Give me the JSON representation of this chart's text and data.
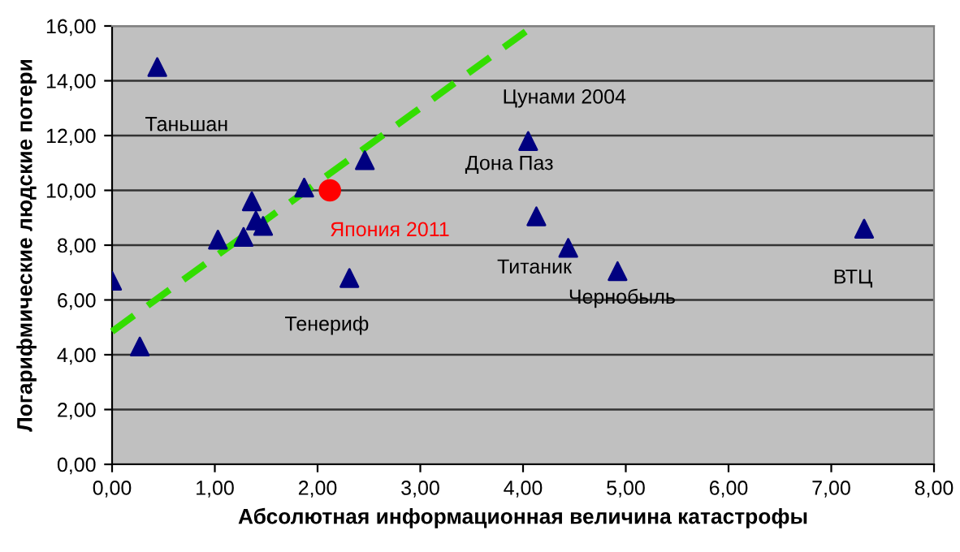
{
  "chart_data": {
    "type": "scatter",
    "xlabel": "Абсолютная информационная величина катастрофы",
    "ylabel": "Логарифмические людские потери",
    "xlim": [
      0,
      8
    ],
    "ylim": [
      0,
      16
    ],
    "xticks": [
      {
        "value": 0,
        "label": "0,00"
      },
      {
        "value": 1,
        "label": "1,00"
      },
      {
        "value": 2,
        "label": "2,00"
      },
      {
        "value": 3,
        "label": "3,00"
      },
      {
        "value": 4,
        "label": "4,00"
      },
      {
        "value": 5,
        "label": "5,00"
      },
      {
        "value": 6,
        "label": "6,00"
      },
      {
        "value": 7,
        "label": "7,00"
      },
      {
        "value": 8,
        "label": "8,00"
      }
    ],
    "yticks": [
      {
        "value": 0,
        "label": "0,00"
      },
      {
        "value": 2,
        "label": "2,00"
      },
      {
        "value": 4,
        "label": "4,00"
      },
      {
        "value": 6,
        "label": "6,00"
      },
      {
        "value": 8,
        "label": "8,00"
      },
      {
        "value": 10,
        "label": "10,00"
      },
      {
        "value": 12,
        "label": "12,00"
      },
      {
        "value": 14,
        "label": "14,00"
      },
      {
        "value": 16,
        "label": "16,00"
      }
    ],
    "grid": "y",
    "series": [
      {
        "type": "line",
        "color": "#33dd00",
        "line_style": "dashed",
        "marker": "none",
        "x": [
          0,
          4.1
        ],
        "values": [
          4.85,
          16.0
        ]
      },
      {
        "color": "#000080",
        "marker": "triangle",
        "x": [
          0,
          0.27,
          0.44,
          1.03,
          1.28,
          1.36,
          1.4,
          1.47,
          1.87,
          2.31,
          2.46,
          4.05,
          4.13,
          4.44,
          4.92,
          7.32
        ],
        "values": [
          6.7,
          4.3,
          14.5,
          8.2,
          8.3,
          9.6,
          8.9,
          8.7,
          10.1,
          6.8,
          11.1,
          11.8,
          9.05,
          7.9,
          7.05,
          8.6
        ]
      },
      {
        "name": "Япония 2011",
        "color": "#ff0000",
        "marker": "circle",
        "x": [
          2.12
        ],
        "values": [
          10.0
        ]
      }
    ],
    "annotations": [
      {
        "text": "Таньшан",
        "x": 0.44,
        "y": 14.5
      },
      {
        "text": "Цунами 2004",
        "x": 4.05,
        "y": 11.8
      },
      {
        "text": "Дона Паз",
        "x": 4.13,
        "y": 9.05
      },
      {
        "text": "Тенериф",
        "x": 2.31,
        "y": 6.8
      },
      {
        "text": "Титаник",
        "x": 4.44,
        "y": 7.9
      },
      {
        "text": "Чернобыль",
        "x": 4.92,
        "y": 7.05
      },
      {
        "text": "ВТЦ",
        "x": 7.32,
        "y": 8.6
      }
    ]
  }
}
